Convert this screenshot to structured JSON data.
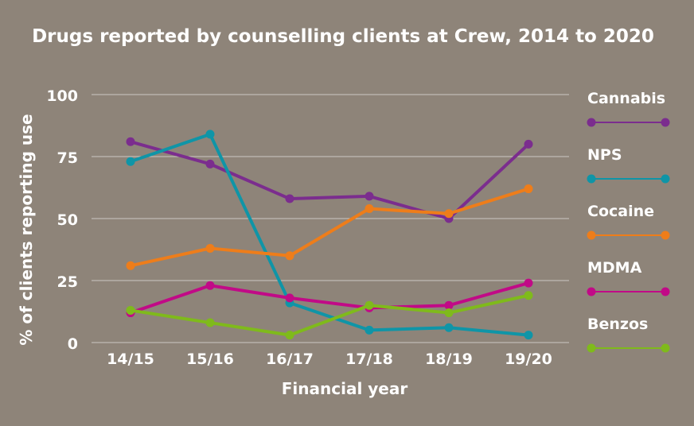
{
  "chart_data": {
    "type": "line",
    "title": "Drugs reported by counselling clients at Crew, 2014 to 2020",
    "xlabel": "Financial year",
    "ylabel": "% of clients reporting use",
    "categories": [
      "14/15",
      "15/16",
      "16/17",
      "17/18",
      "18/19",
      "19/20"
    ],
    "ylim": [
      0,
      100
    ],
    "yticks": [
      0,
      25,
      50,
      75,
      100
    ],
    "grid": true,
    "legend_position": "right",
    "series": [
      {
        "name": "Cannabis",
        "color": "#7b2d8e",
        "values": [
          81,
          72,
          58,
          59,
          50,
          80
        ]
      },
      {
        "name": "NPS",
        "color": "#0f95a7",
        "values": [
          73,
          84,
          16,
          5,
          6,
          3
        ]
      },
      {
        "name": "Cocaine",
        "color": "#ee7d1a",
        "values": [
          31,
          38,
          35,
          54,
          52,
          62
        ]
      },
      {
        "name": "MDMA",
        "color": "#c10a87",
        "values": [
          12,
          23,
          18,
          14,
          15,
          24
        ]
      },
      {
        "name": "Benzos",
        "color": "#7fba1b",
        "values": [
          13,
          8,
          3,
          15,
          12,
          19
        ]
      }
    ]
  }
}
